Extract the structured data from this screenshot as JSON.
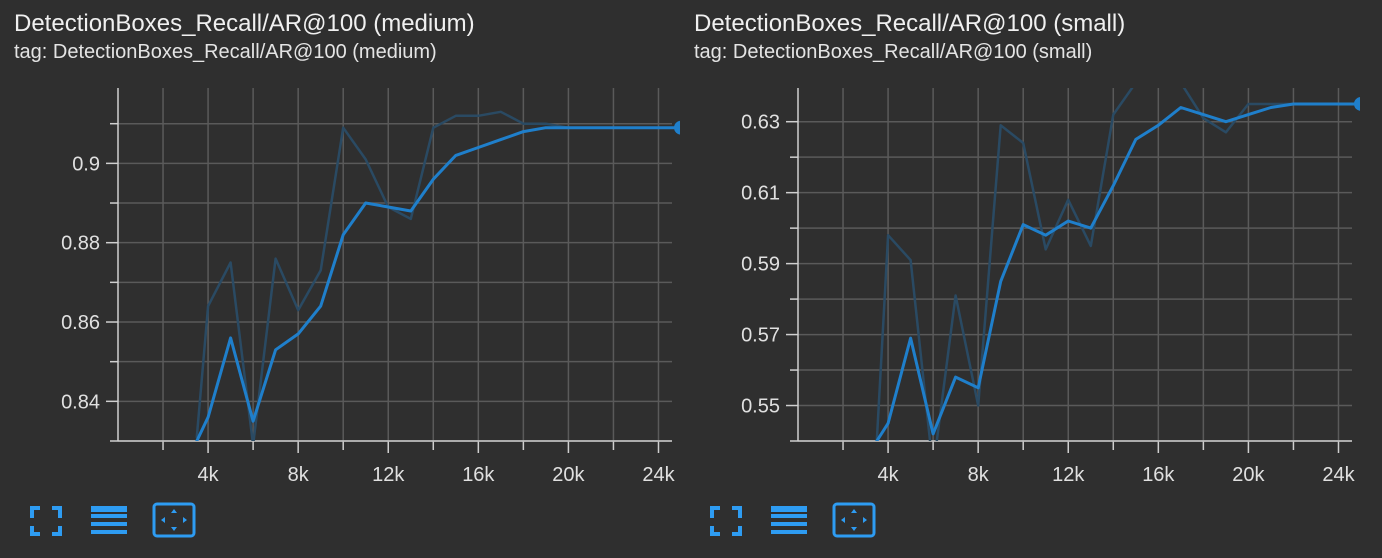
{
  "colors": {
    "background": "#2f2f2f",
    "grid": "#5a5a5a",
    "axis": "#cfcfcf",
    "smoothed_line": "#1f7fcb",
    "raw_line": "#2a4a63",
    "accent": "#2e9cf2"
  },
  "toolbar_icons": [
    "fullscreen-icon",
    "toggle-log-scale-icon",
    "fit-domain-icon"
  ],
  "chart_data": [
    {
      "type": "line",
      "title": "DetectionBoxes_Recall/AR@100 (medium)",
      "tag": "tag: DetectionBoxes_Recall/AR@100 (medium)",
      "xlim": [
        0,
        24600
      ],
      "ylim": [
        0.83,
        0.919
      ],
      "xticks": [
        4000,
        8000,
        12000,
        16000,
        20000,
        24000
      ],
      "xtick_labels": [
        "4k",
        "8k",
        "12k",
        "16k",
        "20k",
        "24k"
      ],
      "yticks": [
        0.84,
        0.86,
        0.88,
        0.9
      ],
      "ytick_labels": [
        "0.84",
        "0.86",
        "0.88",
        "0.9"
      ],
      "grid": true,
      "series": [
        {
          "role": "raw",
          "x": [
            3500,
            4000,
            5000,
            6000,
            7000,
            8000,
            9000,
            10000,
            11000,
            12000,
            13000,
            14000,
            15000,
            16000,
            17000,
            18000,
            19000,
            20000,
            21000,
            22000,
            23000,
            24000,
            25000
          ],
          "y": [
            0.831,
            0.864,
            0.875,
            0.829,
            0.876,
            0.863,
            0.873,
            0.909,
            0.901,
            0.889,
            0.886,
            0.909,
            0.912,
            0.912,
            0.913,
            0.91,
            0.91,
            0.909,
            0.909,
            0.909,
            0.909,
            0.909,
            0.909
          ]
        },
        {
          "role": "smoothed",
          "x": [
            3500,
            4000,
            5000,
            6000,
            7000,
            8000,
            9000,
            10000,
            11000,
            12000,
            13000,
            14000,
            15000,
            16000,
            17000,
            18000,
            19000,
            20000,
            21000,
            22000,
            23000,
            24000,
            25000
          ],
          "y": [
            0.83,
            0.836,
            0.856,
            0.835,
            0.853,
            0.857,
            0.864,
            0.882,
            0.89,
            0.889,
            0.888,
            0.896,
            0.902,
            0.904,
            0.906,
            0.908,
            0.909,
            0.909,
            0.909,
            0.909,
            0.909,
            0.909,
            0.909
          ]
        }
      ]
    },
    {
      "type": "line",
      "title": "DetectionBoxes_Recall/AR@100 (small)",
      "tag": "tag: DetectionBoxes_Recall/AR@100 (small)",
      "xlim": [
        0,
        24600
      ],
      "ylim": [
        0.54,
        0.6395
      ],
      "xticks": [
        4000,
        8000,
        12000,
        16000,
        20000,
        24000
      ],
      "xtick_labels": [
        "4k",
        "8k",
        "12k",
        "16k",
        "20k",
        "24k"
      ],
      "yticks": [
        0.55,
        0.57,
        0.59,
        0.61,
        0.63
      ],
      "ytick_labels": [
        "0.55",
        "0.57",
        "0.59",
        "0.61",
        "0.63"
      ],
      "grid": true,
      "series": [
        {
          "role": "raw",
          "x": [
            3500,
            4000,
            5000,
            6000,
            7000,
            8000,
            9000,
            10000,
            11000,
            12000,
            13000,
            14000,
            15000,
            16000,
            17000,
            18000,
            19000,
            20000,
            21000,
            22000,
            23000,
            24000,
            25000
          ],
          "y": [
            0.54,
            0.598,
            0.591,
            0.532,
            0.581,
            0.55,
            0.629,
            0.624,
            0.594,
            0.608,
            0.595,
            0.632,
            0.641,
            0.641,
            0.641,
            0.631,
            0.627,
            0.635,
            0.635,
            0.635,
            0.635,
            0.635,
            0.635
          ]
        },
        {
          "role": "smoothed",
          "x": [
            3500,
            4000,
            5000,
            6000,
            7000,
            8000,
            9000,
            10000,
            11000,
            12000,
            13000,
            14000,
            15000,
            16000,
            17000,
            18000,
            19000,
            20000,
            21000,
            22000,
            23000,
            24000,
            25000
          ],
          "y": [
            0.54,
            0.545,
            0.569,
            0.542,
            0.558,
            0.555,
            0.585,
            0.601,
            0.598,
            0.602,
            0.6,
            0.612,
            0.625,
            0.629,
            0.634,
            0.632,
            0.63,
            0.632,
            0.634,
            0.635,
            0.635,
            0.635,
            0.635
          ]
        }
      ]
    }
  ]
}
